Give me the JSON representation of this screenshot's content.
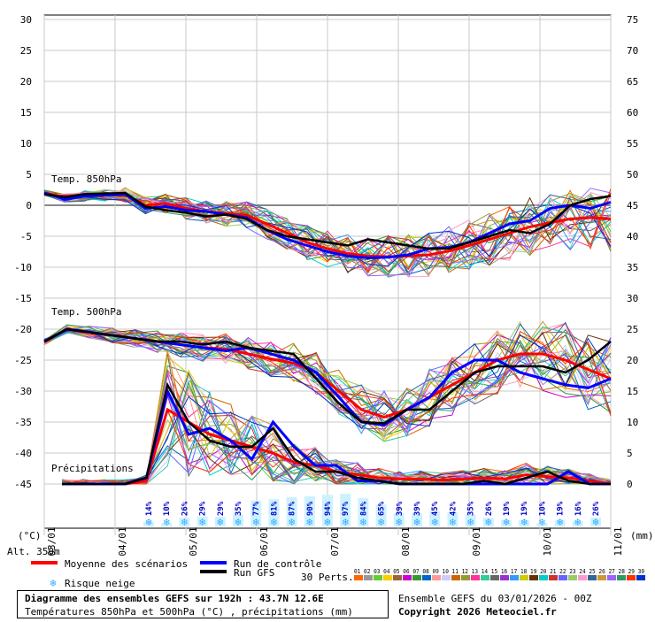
{
  "chart_data": {
    "type": "line",
    "y_left_ticks": [
      30,
      25,
      20,
      15,
      10,
      5,
      0,
      -5,
      -10,
      -15,
      -20,
      -25,
      -30,
      -35,
      -40,
      -45
    ],
    "y_right_ticks": [
      75,
      70,
      65,
      60,
      55,
      50,
      45,
      40,
      35,
      30,
      25,
      20,
      15,
      10,
      5,
      0
    ],
    "x_date_labels": [
      "03/01",
      "04/01",
      "05/01",
      "06/01",
      "07/01",
      "08/01",
      "09/01",
      "10/01",
      "11/01"
    ],
    "y_left_unit": "(°C)",
    "y_right_unit": "(mm)",
    "altitude_label": "Alt. 350m",
    "panel_labels": {
      "t850": "Temp. 850hPa",
      "t500": "Temp. 500hPa",
      "precip": "Précipitations"
    },
    "series": [
      {
        "name": "Moyenne des scénarios",
        "color": "#ff0000",
        "t850": [
          2,
          1.2,
          1.5,
          1.6,
          1.7,
          0,
          0.3,
          -0.5,
          -1,
          -1.3,
          -1.6,
          -3,
          -4.5,
          -6,
          -7,
          -7.8,
          -8.2,
          -8.3,
          -8.2,
          -8,
          -7.4,
          -6.5,
          -5.5,
          -4.5,
          -3.5,
          -2.8,
          -2.2,
          -2,
          -2.2
        ],
        "t500": [
          -22,
          -20,
          -20.5,
          -21,
          -21.5,
          -22,
          -22.5,
          -23,
          -23.2,
          -24,
          -24.8,
          -25.5,
          -27,
          -30,
          -33,
          -34.2,
          -33,
          -31,
          -29,
          -27,
          -25,
          -24,
          -24,
          -25,
          -26.5,
          -28
        ],
        "precip": [
          0,
          0,
          0,
          0,
          0.5,
          12,
          10,
          8,
          7,
          6,
          5,
          3.5,
          3,
          2,
          1.5,
          1,
          0.8,
          0.8,
          0.6,
          0.8,
          1,
          0.8,
          1.5,
          1.2,
          1,
          0.5,
          0
        ]
      },
      {
        "name": "Run de contrôle",
        "color": "#0000ff",
        "t850": [
          2,
          1,
          1.5,
          1.6,
          1.8,
          -0.5,
          -0.2,
          -0.8,
          -1,
          -1.5,
          -2,
          -4,
          -5.5,
          -6.5,
          -7.5,
          -8.2,
          -8.5,
          -8.4,
          -8,
          -7,
          -6.8,
          -6,
          -4.5,
          -3,
          -2.5,
          -0.5,
          0,
          -0.5,
          0.5
        ],
        "t500": [
          -22,
          -20,
          -20.5,
          -21,
          -21.5,
          -22,
          -22.5,
          -23,
          -23.5,
          -23,
          -24,
          -25,
          -27,
          -31,
          -35,
          -35.5,
          -33,
          -31,
          -27,
          -25,
          -25,
          -27,
          -28,
          -29,
          -29.5,
          -28
        ],
        "precip": [
          0,
          0,
          0,
          0,
          1,
          15,
          8,
          9,
          7,
          4,
          10,
          6,
          3,
          3,
          0.5,
          0.5,
          0,
          0,
          0,
          0,
          0,
          0,
          0,
          0,
          2,
          0,
          0
        ]
      },
      {
        "name": "Run GFS",
        "color": "#000000",
        "t850": [
          1.8,
          1.3,
          1.8,
          1.9,
          2,
          -0.2,
          -0.8,
          -1.2,
          -1.8,
          -1.5,
          -2.2,
          -4,
          -5,
          -5.5,
          -6,
          -6.5,
          -5.5,
          -6,
          -6.5,
          -7,
          -7,
          -6,
          -5,
          -4,
          -4.5,
          -3,
          0,
          1,
          1.5
        ],
        "t500": [
          -22,
          -20,
          -20.5,
          -21,
          -21.5,
          -22,
          -22,
          -22.5,
          -22,
          -23,
          -23.5,
          -24,
          -28,
          -32,
          -35,
          -35.2,
          -33,
          -33,
          -30,
          -27,
          -26,
          -26,
          -26,
          -27,
          -25,
          -22
        ],
        "precip": [
          0,
          0,
          0,
          0,
          1,
          16,
          10,
          7,
          6,
          6,
          9,
          4,
          2,
          2,
          1,
          0.5,
          0,
          0,
          0,
          0,
          0.5,
          0,
          1,
          2,
          0.5,
          0,
          0
        ]
      }
    ],
    "ensemble_members": 30,
    "snow_risk_pct": [
      "14%",
      "10%",
      "26%",
      "29%",
      "29%",
      "35%",
      "77%",
      "81%",
      "87%",
      "90%",
      "94%",
      "97%",
      "84%",
      "65%",
      "39%",
      "39%",
      "45%",
      "42%",
      "35%",
      "26%",
      "19%",
      "19%",
      "10%",
      "19%",
      "16%",
      "26%"
    ],
    "legend": {
      "mean": "Moyenne des scénarios",
      "control": "Run de contrôle",
      "gfs": "Run GFS",
      "snow": "Risque neige",
      "perts": "30 Perts.",
      "member_ids": "01 02 03 04 05 06 07 08 09 10 11 12 13 14 15 16 17 18 19 20 21 22 23 24 25 26 27 28 29 30"
    },
    "member_colors": [
      "#ff6600",
      "#999999",
      "#66cc33",
      "#ffcc00",
      "#996633",
      "#cc00cc",
      "#339933",
      "#0066cc",
      "#ff9999",
      "#ccccff",
      "#cc6600",
      "#999933",
      "#ff3399",
      "#33cc99",
      "#666666",
      "#9933cc",
      "#3399ff",
      "#cccc00",
      "#663300",
      "#00cccc",
      "#cc3333",
      "#6666ff",
      "#99cc66",
      "#ff99cc",
      "#336699",
      "#cc9933",
      "#9966ff",
      "#339966",
      "#ff3300",
      "#0033cc"
    ]
  },
  "footer": {
    "title": "Diagramme des ensembles GEFS sur 192h : 43.7N 12.6E",
    "subtitle": "Températures 850hPa et 500hPa (°C) , précipitations (mm)",
    "run": "Ensemble GEFS du 03/01/2026 - 00Z",
    "copyright": "Copyright 2026 Meteociel.fr"
  }
}
